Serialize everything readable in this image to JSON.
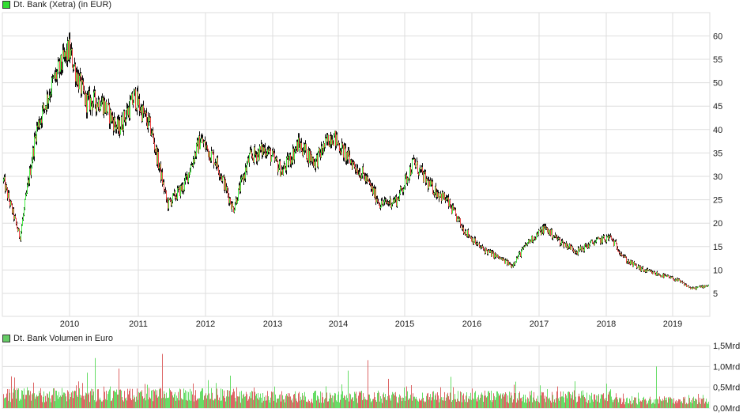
{
  "price_legend": {
    "label": "Dt. Bank (Xetra) (in EUR)",
    "swatch_color": "#33dd33"
  },
  "volume_legend": {
    "label": "Dt. Bank Volumen in Euro",
    "swatch_color": "#66cc66"
  },
  "colors": {
    "up": "#44ee44",
    "down": "#ee4444",
    "wick": "#111111",
    "grid": "#dddddd",
    "vol_up": "#66dd66",
    "vol_down": "#dd6666"
  },
  "chart_data": [
    {
      "type": "line",
      "title": "Dt. Bank (Xetra) (in EUR)",
      "xlabel": "",
      "ylabel": "EUR",
      "ylim": [
        0,
        65
      ],
      "grid": true,
      "legend_position": "top-left",
      "x_ticks": [
        "2010",
        "2011",
        "2012",
        "2013",
        "2014",
        "2015",
        "2016",
        "2017",
        "2018",
        "2019"
      ],
      "y_ticks": [
        5,
        10,
        15,
        20,
        25,
        30,
        35,
        40,
        45,
        50,
        55,
        60
      ],
      "x": [
        "2009-03",
        "2009-06",
        "2009-09",
        "2010-01",
        "2010-04",
        "2010-07",
        "2010-10",
        "2011-01",
        "2011-04",
        "2011-07",
        "2011-09",
        "2011-12",
        "2012-03",
        "2012-06",
        "2012-09",
        "2012-12",
        "2013-03",
        "2013-06",
        "2013-09",
        "2013-12",
        "2014-01",
        "2014-04",
        "2014-07",
        "2014-10",
        "2015-01",
        "2015-04",
        "2015-07",
        "2015-10",
        "2016-01",
        "2016-03",
        "2016-06",
        "2016-09",
        "2016-12",
        "2017-03",
        "2017-06",
        "2017-09",
        "2017-12",
        "2018-03",
        "2018-06",
        "2018-09",
        "2018-12",
        "2019-03",
        "2019-06",
        "2019-08"
      ],
      "values": [
        29,
        17,
        40,
        50,
        57,
        46,
        46,
        40,
        47,
        40,
        24,
        28,
        38,
        33,
        23,
        34,
        36,
        31,
        37,
        33,
        39,
        34,
        30,
        24,
        25,
        33,
        28,
        25,
        19,
        15,
        13,
        11,
        16,
        19,
        16,
        14,
        16,
        17,
        12,
        10,
        9,
        8,
        6,
        6.8
      ]
    },
    {
      "type": "bar",
      "title": "Dt. Bank Volumen in Euro",
      "ylabel": "Euro",
      "ylim": [
        0,
        1.5
      ],
      "y_ticks": [
        "0,0Mrd",
        "0,5Mrd",
        "1,0Mrd",
        "1,5Mrd"
      ],
      "grid": true,
      "note": "daily volume bars, green=up day, red=down day; typical 0.2-0.5 Mrd, peaks ~1.3 Mrd (2010), ~1.15 Mrd (2014), ~1.0 Mrd (2019)"
    }
  ],
  "axes": {
    "price_y_labels": [
      "60",
      "55",
      "50",
      "45",
      "40",
      "35",
      "30",
      "25",
      "20",
      "15",
      "10",
      "5"
    ],
    "x_labels": [
      "2010",
      "2011",
      "2012",
      "2013",
      "2014",
      "2015",
      "2016",
      "2017",
      "2018",
      "2019"
    ],
    "volume_y_labels": [
      "1,5Mrd",
      "1,0Mrd",
      "0,5Mrd",
      "0,0Mrd"
    ]
  }
}
